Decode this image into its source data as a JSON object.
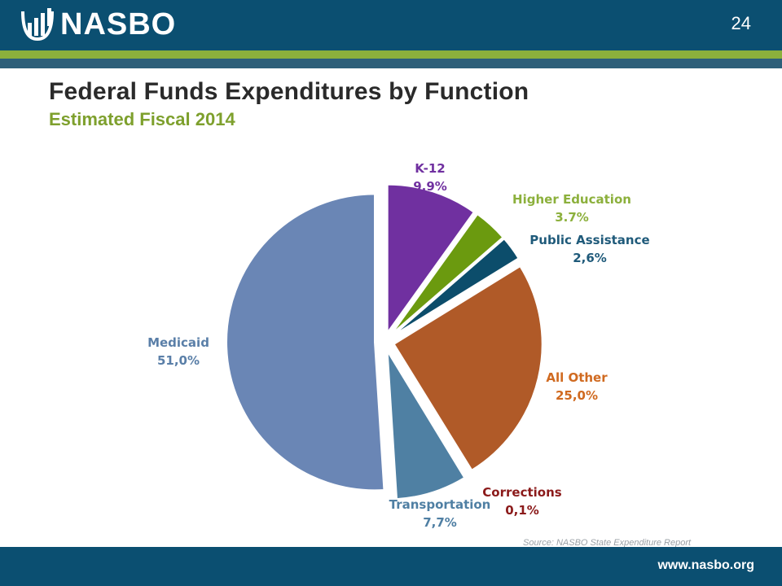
{
  "header": {
    "logo_text": "NASBO",
    "page_number": "24"
  },
  "slide": {
    "title": "Federal Funds Expenditures by Function",
    "subtitle": "Estimated Fiscal 2014"
  },
  "footer": {
    "source": "Source: NASBO State Expenditure Report",
    "website": "www.nasbo.org"
  },
  "colors": {
    "header_bg": "#0b4f71",
    "accent_green": "#8cb03c",
    "subtitle_green": "#7ea02d"
  },
  "chart_data": {
    "type": "pie",
    "title": "",
    "start_angle_deg": 0,
    "slices": [
      {
        "label": "K-12",
        "value_label": "9.9%",
        "value": 9.9,
        "color": "#7030a0",
        "label_color": "#7030a0"
      },
      {
        "label": "Higher Education",
        "value_label": "3.7%",
        "value": 3.7,
        "color": "#6b9a0f",
        "label_color": "#8cb03c"
      },
      {
        "label": "Public Assistance",
        "value_label": "2,6%",
        "value": 2.6,
        "color": "#0c4d6b",
        "label_color": "#1f5a7a"
      },
      {
        "label": "All Other",
        "value_label": "25,0%",
        "value": 25.0,
        "color": "#b05a28",
        "label_color": "#d06a20"
      },
      {
        "label": "Corrections",
        "value_label": "0,1%",
        "value": 0.1,
        "color": "#8b1a1a",
        "label_color": "#8b1a1a"
      },
      {
        "label": "Transportation",
        "value_label": "7,7%",
        "value": 7.7,
        "color": "#4f80a3",
        "label_color": "#4f7fa3"
      },
      {
        "label": "Medicaid",
        "value_label": "51,0%",
        "value": 51.0,
        "color": "#6a86b5",
        "label_color": "#5a7fa8"
      }
    ]
  }
}
